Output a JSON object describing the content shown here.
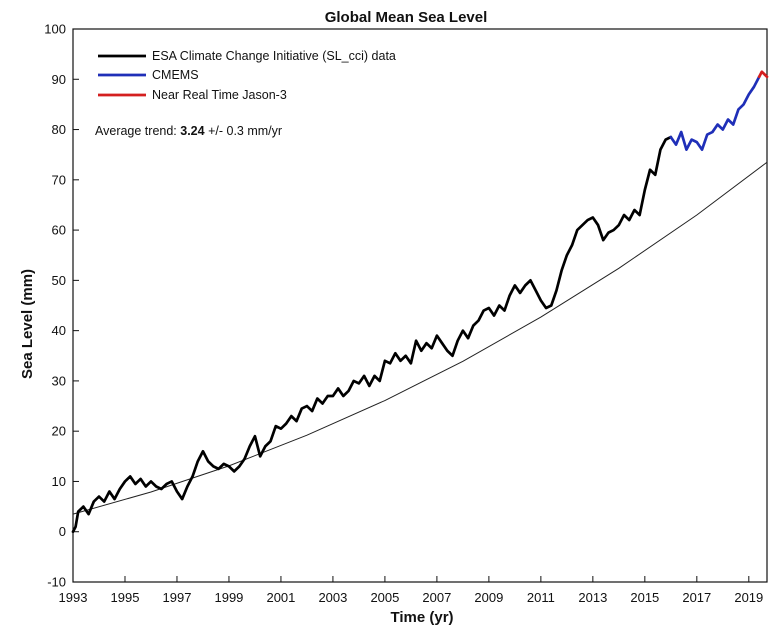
{
  "chart_data": {
    "type": "line",
    "title": "Global Mean Sea Level",
    "xlabel": "Time (yr)",
    "ylabel": "Sea Level (mm)",
    "xlim": [
      1993,
      2019.7
    ],
    "ylim": [
      -10,
      100
    ],
    "xticks": [
      1993,
      1995,
      1997,
      1999,
      2001,
      2003,
      2005,
      2007,
      2009,
      2011,
      2013,
      2015,
      2017,
      2019
    ],
    "yticks": [
      -10,
      0,
      10,
      20,
      30,
      40,
      50,
      60,
      70,
      80,
      90,
      100
    ],
    "grid": false,
    "legend_position": "top-left",
    "annotation": {
      "prefix": "Average trend: ",
      "value": "3.24",
      "suffix": " +/- 0.3 mm/yr"
    },
    "series": [
      {
        "name": "ESA Climate Change Initiative (SL_cci) data",
        "color": "#000000",
        "x": [
          1993.0,
          1993.1,
          1993.2,
          1993.4,
          1993.6,
          1993.8,
          1994.0,
          1994.2,
          1994.4,
          1994.6,
          1994.8,
          1995.0,
          1995.2,
          1995.4,
          1995.6,
          1995.8,
          1996.0,
          1996.2,
          1996.4,
          1996.6,
          1996.8,
          1997.0,
          1997.2,
          1997.4,
          1997.6,
          1997.8,
          1998.0,
          1998.2,
          1998.4,
          1998.6,
          1998.8,
          1999.0,
          1999.2,
          1999.4,
          1999.6,
          1999.8,
          2000.0,
          2000.2,
          2000.4,
          2000.6,
          2000.8,
          2001.0,
          2001.2,
          2001.4,
          2001.6,
          2001.8,
          2002.0,
          2002.2,
          2002.4,
          2002.6,
          2002.8,
          2003.0,
          2003.2,
          2003.4,
          2003.6,
          2003.8,
          2004.0,
          2004.2,
          2004.4,
          2004.6,
          2004.8,
          2005.0,
          2005.2,
          2005.4,
          2005.6,
          2005.8,
          2006.0,
          2006.2,
          2006.4,
          2006.6,
          2006.8,
          2007.0,
          2007.2,
          2007.4,
          2007.6,
          2007.8,
          2008.0,
          2008.2,
          2008.4,
          2008.6,
          2008.8,
          2009.0,
          2009.2,
          2009.4,
          2009.6,
          2009.8,
          2010.0,
          2010.2,
          2010.4,
          2010.6,
          2010.8,
          2011.0,
          2011.2,
          2011.4,
          2011.6,
          2011.8,
          2012.0,
          2012.2,
          2012.4,
          2012.6,
          2012.8,
          2013.0,
          2013.2,
          2013.4,
          2013.6,
          2013.8,
          2014.0,
          2014.2,
          2014.4,
          2014.6,
          2014.8,
          2015.0,
          2015.2,
          2015.4,
          2015.6,
          2015.8,
          2016.0
        ],
        "y": [
          0.0,
          1.0,
          4.0,
          5.0,
          3.5,
          6.0,
          7.0,
          6.0,
          8.0,
          6.5,
          8.5,
          10.0,
          11.0,
          9.5,
          10.5,
          9.0,
          10.0,
          9.0,
          8.5,
          9.5,
          10.0,
          8.0,
          6.5,
          9.0,
          11.0,
          14.0,
          16.0,
          14.0,
          13.0,
          12.5,
          13.5,
          13.0,
          12.0,
          13.0,
          14.5,
          17.0,
          19.0,
          15.0,
          17.0,
          18.0,
          21.0,
          20.5,
          21.5,
          23.0,
          22.0,
          24.5,
          25.0,
          24.0,
          26.5,
          25.5,
          27.0,
          27.0,
          28.5,
          27.0,
          28.0,
          30.0,
          29.5,
          31.0,
          29.0,
          31.0,
          30.0,
          34.0,
          33.5,
          35.5,
          34.0,
          35.0,
          33.5,
          38.0,
          36.0,
          37.5,
          36.5,
          39.0,
          37.5,
          36.0,
          35.0,
          38.0,
          40.0,
          38.5,
          41.0,
          42.0,
          44.0,
          44.5,
          43.0,
          45.0,
          44.0,
          47.0,
          49.0,
          47.5,
          49.0,
          50.0,
          48.0,
          46.0,
          44.5,
          45.0,
          48.0,
          52.0,
          55.0,
          57.0,
          60.0,
          61.0,
          62.0,
          62.5,
          61.0,
          58.0,
          59.5,
          60.0,
          61.0,
          63.0,
          62.0,
          64.0,
          63.0,
          68.0,
          72.0,
          71.0,
          76.0,
          78.0,
          78.5
        ]
      },
      {
        "name": "CMEMS",
        "color": "#1f2fb8",
        "x": [
          2016.0,
          2016.2,
          2016.4,
          2016.6,
          2016.8,
          2017.0,
          2017.2,
          2017.4,
          2017.6,
          2017.8,
          2018.0,
          2018.2,
          2018.4,
          2018.6,
          2018.8,
          2019.0,
          2019.2,
          2019.4
        ],
        "y": [
          78.5,
          77.0,
          79.5,
          76.0,
          78.0,
          77.5,
          76.0,
          79.0,
          79.5,
          81.0,
          80.0,
          82.0,
          81.0,
          84.0,
          85.0,
          87.0,
          88.5,
          90.5
        ]
      },
      {
        "name": "Near Real Time Jason-3",
        "color": "#d41f1f",
        "x": [
          2019.4,
          2019.5,
          2019.6,
          2019.7
        ],
        "y": [
          90.5,
          91.5,
          91.0,
          90.5
        ]
      }
    ],
    "trend_line": {
      "x": [
        1993.0,
        1996.0,
        1999.0,
        2002.0,
        2005.0,
        2008.0,
        2011.0,
        2014.0,
        2017.0,
        2019.7
      ],
      "y": [
        3.5,
        7.9,
        13.1,
        19.2,
        26.1,
        33.9,
        42.7,
        52.4,
        63.0,
        73.5
      ]
    }
  }
}
